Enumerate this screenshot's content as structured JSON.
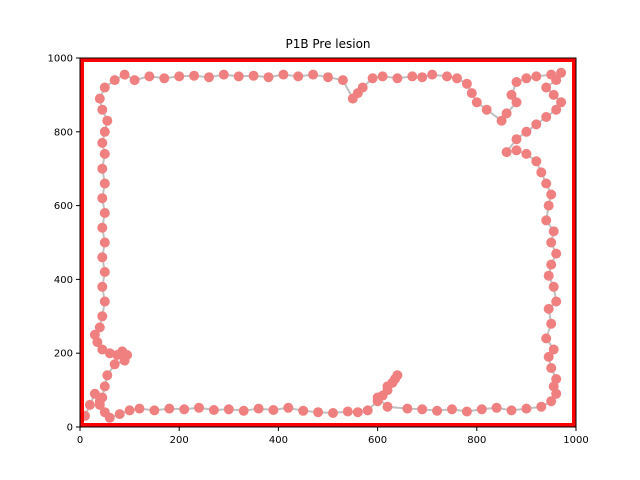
{
  "chart_data": {
    "type": "scatter",
    "title": "P1B Pre lesion",
    "xlabel": "",
    "ylabel": "",
    "xlim": [
      0,
      1000
    ],
    "ylim": [
      0,
      1000
    ],
    "x_ticks": [
      0,
      200,
      400,
      600,
      800,
      1000
    ],
    "y_ticks": [
      0,
      200,
      400,
      600,
      800,
      1000
    ],
    "grid": false,
    "arena_border": {
      "x": [
        0,
        1000
      ],
      "y": [
        0,
        1000
      ],
      "color": "#ff0000"
    },
    "colors": {
      "points": "#f08080",
      "path": "#c0c0c0",
      "arena": "#ff0000"
    },
    "series": [
      {
        "values": [
          [
            10,
            30
          ],
          [
            20,
            60
          ],
          [
            30,
            90
          ],
          [
            40,
            70
          ],
          [
            50,
            40
          ],
          [
            60,
            25
          ],
          [
            80,
            35
          ],
          [
            100,
            45
          ],
          [
            120,
            50
          ],
          [
            150,
            45
          ],
          [
            180,
            50
          ],
          [
            210,
            48
          ],
          [
            240,
            52
          ],
          [
            270,
            46
          ],
          [
            300,
            48
          ],
          [
            330,
            44
          ],
          [
            360,
            50
          ],
          [
            390,
            46
          ],
          [
            420,
            52
          ],
          [
            450,
            44
          ],
          [
            480,
            40
          ],
          [
            510,
            38
          ],
          [
            540,
            42
          ],
          [
            560,
            40
          ],
          [
            580,
            45
          ],
          [
            600,
            70
          ],
          [
            610,
            85
          ],
          [
            620,
            100
          ],
          [
            630,
            120
          ],
          [
            640,
            140
          ],
          [
            635,
            130
          ],
          [
            620,
            110
          ],
          [
            600,
            80
          ],
          [
            620,
            55
          ],
          [
            660,
            50
          ],
          [
            690,
            48
          ],
          [
            720,
            44
          ],
          [
            750,
            48
          ],
          [
            780,
            42
          ],
          [
            810,
            48
          ],
          [
            840,
            52
          ],
          [
            870,
            45
          ],
          [
            900,
            50
          ],
          [
            930,
            55
          ],
          [
            950,
            70
          ],
          [
            960,
            90
          ],
          [
            955,
            110
          ],
          [
            960,
            130
          ],
          [
            950,
            160
          ],
          [
            945,
            190
          ],
          [
            955,
            210
          ],
          [
            940,
            240
          ],
          [
            950,
            280
          ],
          [
            945,
            320
          ],
          [
            960,
            340
          ],
          [
            955,
            380
          ],
          [
            945,
            410
          ],
          [
            950,
            440
          ],
          [
            960,
            470
          ],
          [
            950,
            500
          ],
          [
            955,
            530
          ],
          [
            940,
            560
          ],
          [
            945,
            600
          ],
          [
            950,
            630
          ],
          [
            940,
            660
          ],
          [
            930,
            690
          ],
          [
            920,
            720
          ],
          [
            900,
            740
          ],
          [
            880,
            750
          ],
          [
            860,
            745
          ],
          [
            880,
            780
          ],
          [
            900,
            800
          ],
          [
            920,
            820
          ],
          [
            940,
            840
          ],
          [
            960,
            860
          ],
          [
            970,
            880
          ],
          [
            955,
            900
          ],
          [
            940,
            920
          ],
          [
            960,
            940
          ],
          [
            970,
            960
          ],
          [
            950,
            955
          ],
          [
            920,
            950
          ],
          [
            900,
            945
          ],
          [
            880,
            935
          ],
          [
            870,
            900
          ],
          [
            880,
            880
          ],
          [
            860,
            850
          ],
          [
            850,
            830
          ],
          [
            820,
            860
          ],
          [
            800,
            880
          ],
          [
            790,
            905
          ],
          [
            780,
            930
          ],
          [
            760,
            945
          ],
          [
            740,
            950
          ],
          [
            710,
            955
          ],
          [
            690,
            948
          ],
          [
            670,
            950
          ],
          [
            640,
            945
          ],
          [
            610,
            950
          ],
          [
            590,
            945
          ],
          [
            570,
            920
          ],
          [
            560,
            905
          ],
          [
            550,
            890
          ],
          [
            530,
            940
          ],
          [
            500,
            948
          ],
          [
            470,
            955
          ],
          [
            440,
            950
          ],
          [
            410,
            955
          ],
          [
            380,
            948
          ],
          [
            350,
            952
          ],
          [
            320,
            950
          ],
          [
            290,
            955
          ],
          [
            260,
            948
          ],
          [
            230,
            952
          ],
          [
            200,
            950
          ],
          [
            170,
            945
          ],
          [
            140,
            950
          ],
          [
            110,
            940
          ],
          [
            90,
            955
          ],
          [
            70,
            940
          ],
          [
            50,
            920
          ],
          [
            40,
            890
          ],
          [
            45,
            860
          ],
          [
            55,
            830
          ],
          [
            50,
            800
          ],
          [
            45,
            770
          ],
          [
            50,
            740
          ],
          [
            45,
            700
          ],
          [
            50,
            660
          ],
          [
            45,
            620
          ],
          [
            50,
            580
          ],
          [
            45,
            540
          ],
          [
            50,
            500
          ],
          [
            45,
            460
          ],
          [
            50,
            420
          ],
          [
            45,
            380
          ],
          [
            50,
            340
          ],
          [
            45,
            300
          ],
          [
            40,
            270
          ],
          [
            30,
            250
          ],
          [
            35,
            230
          ],
          [
            45,
            210
          ],
          [
            60,
            200
          ],
          [
            75,
            195
          ],
          [
            85,
            205
          ],
          [
            95,
            195
          ],
          [
            90,
            180
          ],
          [
            70,
            170
          ],
          [
            55,
            140
          ],
          [
            50,
            110
          ],
          [
            45,
            80
          ],
          [
            40,
            60
          ]
        ]
      }
    ]
  }
}
